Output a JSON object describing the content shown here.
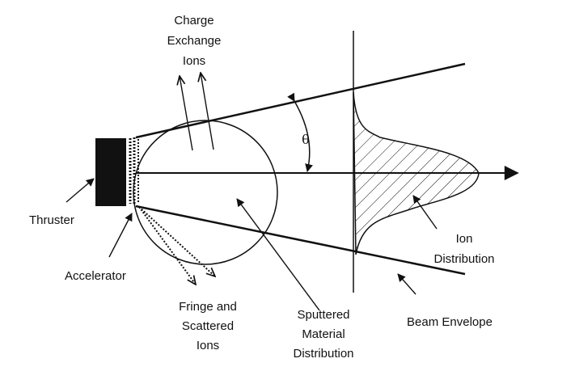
{
  "labels": {
    "charge_exchange": [
      "Charge",
      "Exchange",
      "Ions"
    ],
    "theta": "θ",
    "thruster": "Thruster",
    "accelerator": "Accelerator",
    "fringe": [
      "Fringe and",
      "Scattered",
      "Ions"
    ],
    "sputtered": [
      "Sputtered",
      "Material",
      "Distribution"
    ],
    "beam_envelope": "Beam Envelope",
    "ion_distribution": [
      "Ion",
      "Distribution"
    ]
  },
  "colors": {
    "ink": "#111111",
    "background": "#ffffff"
  }
}
